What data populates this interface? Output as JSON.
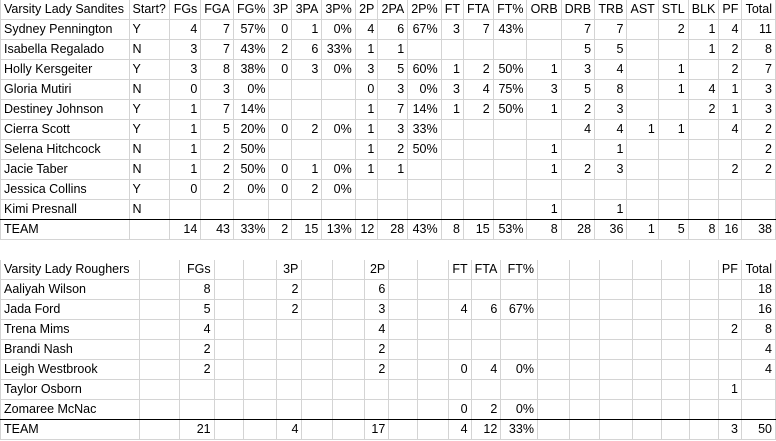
{
  "table1": {
    "header": [
      "Varsity Lady Sandites",
      "Start?",
      "FGs",
      "FGA",
      "FG%",
      "3P",
      "3PA",
      "3P%",
      "2P",
      "2PA",
      "2P%",
      "FT",
      "FTA",
      "FT%",
      "ORB",
      "DRB",
      "TRB",
      "AST",
      "STL",
      "BLK",
      "PF",
      "Total"
    ],
    "rows": [
      [
        "Sydney Pennington",
        "Y",
        "4",
        "7",
        "57%",
        "0",
        "1",
        "0%",
        "4",
        "6",
        "67%",
        "3",
        "7",
        "43%",
        "",
        "7",
        "7",
        "",
        "2",
        "1",
        "4",
        "11"
      ],
      [
        "Isabella Regalado",
        "N",
        "3",
        "7",
        "43%",
        "2",
        "6",
        "33%",
        "1",
        "1",
        "",
        "",
        "",
        "",
        "",
        "5",
        "5",
        "",
        "",
        "1",
        "2",
        "8"
      ],
      [
        "Holly Kersgeiter",
        "Y",
        "3",
        "8",
        "38%",
        "0",
        "3",
        "0%",
        "3",
        "5",
        "60%",
        "1",
        "2",
        "50%",
        "1",
        "3",
        "4",
        "",
        "1",
        "",
        "2",
        "7"
      ],
      [
        "Gloria Mutiri",
        "N",
        "0",
        "3",
        "0%",
        "",
        "",
        "",
        "0",
        "3",
        "0%",
        "3",
        "4",
        "75%",
        "3",
        "5",
        "8",
        "",
        "1",
        "4",
        "1",
        "3"
      ],
      [
        "Destiney Johnson",
        "Y",
        "1",
        "7",
        "14%",
        "",
        "",
        "",
        "1",
        "7",
        "14%",
        "1",
        "2",
        "50%",
        "1",
        "2",
        "3",
        "",
        "",
        "2",
        "1",
        "3"
      ],
      [
        "Cierra Scott",
        "Y",
        "1",
        "5",
        "20%",
        "0",
        "2",
        "0%",
        "1",
        "3",
        "33%",
        "",
        "",
        "",
        "",
        "4",
        "4",
        "1",
        "1",
        "",
        "4",
        "2"
      ],
      [
        "Selena Hitchcock",
        "N",
        "1",
        "2",
        "50%",
        "",
        "",
        "",
        "1",
        "2",
        "50%",
        "",
        "",
        "",
        "1",
        "",
        "1",
        "",
        "",
        "",
        "",
        "2"
      ],
      [
        "Jacie Taber",
        "N",
        "1",
        "2",
        "50%",
        "0",
        "1",
        "0%",
        "1",
        "1",
        "",
        "",
        "",
        "",
        "1",
        "2",
        "3",
        "",
        "",
        "",
        "2",
        "2"
      ],
      [
        "Jessica Collins",
        "Y",
        "0",
        "2",
        "0%",
        "0",
        "2",
        "0%",
        "",
        "",
        "",
        "",
        "",
        "",
        "",
        "",
        "",
        "",
        "",
        "",
        "",
        ""
      ],
      [
        "Kimi Presnall",
        "N",
        "",
        "",
        "",
        "",
        "",
        "",
        "",
        "",
        "",
        "",
        "",
        "",
        "1",
        "",
        "1",
        "",
        "",
        "",
        "",
        ""
      ]
    ],
    "team": [
      "TEAM",
      "",
      "14",
      "43",
      "33%",
      "2",
      "15",
      "13%",
      "12",
      "28",
      "43%",
      "8",
      "15",
      "53%",
      "8",
      "28",
      "36",
      "1",
      "5",
      "8",
      "16",
      "38"
    ]
  },
  "table2": {
    "header": [
      "Varsity Lady Roughers",
      "",
      "FGs",
      "",
      "",
      "3P",
      "",
      "",
      "2P",
      "",
      "",
      "FT",
      "FTA",
      "FT%",
      "",
      "",
      "",
      "",
      "",
      "",
      "PF",
      "Total"
    ],
    "rows": [
      [
        "Aaliyah Wilson",
        "",
        "8",
        "",
        "",
        "2",
        "",
        "",
        "6",
        "",
        "",
        "",
        "",
        "",
        "",
        "",
        "",
        "",
        "",
        "",
        "",
        "18"
      ],
      [
        "Jada Ford",
        "",
        "5",
        "",
        "",
        "2",
        "",
        "",
        "3",
        "",
        "",
        "4",
        "6",
        "67%",
        "",
        "",
        "",
        "",
        "",
        "",
        "",
        "16"
      ],
      [
        "Trena Mims",
        "",
        "4",
        "",
        "",
        "",
        "",
        "",
        "4",
        "",
        "",
        "",
        "",
        "",
        "",
        "",
        "",
        "",
        "",
        "",
        "2",
        "8"
      ],
      [
        "Brandi Nash",
        "",
        "2",
        "",
        "",
        "",
        "",
        "",
        "2",
        "",
        "",
        "",
        "",
        "",
        "",
        "",
        "",
        "",
        "",
        "",
        "",
        "4"
      ],
      [
        "Leigh Westbrook",
        "",
        "2",
        "",
        "",
        "",
        "",
        "",
        "2",
        "",
        "",
        "0",
        "4",
        "0%",
        "",
        "",
        "",
        "",
        "",
        "",
        "",
        "4"
      ],
      [
        "Taylor Osborn",
        "",
        "",
        "",
        "",
        "",
        "",
        "",
        "",
        "",
        "",
        "",
        "",
        "",
        "",
        "",
        "",
        "",
        "",
        "",
        "1",
        ""
      ],
      [
        "Zomaree McNac",
        "",
        "",
        "",
        "",
        "",
        "",
        "",
        "",
        "",
        "",
        "0",
        "2",
        "0%",
        "",
        "",
        "",
        "",
        "",
        "",
        "",
        ""
      ]
    ],
    "team": [
      "TEAM",
      "",
      "21",
      "",
      "",
      "4",
      "",
      "",
      "17",
      "",
      "",
      "4",
      "12",
      "33%",
      "",
      "",
      "",
      "",
      "",
      "",
      "3",
      "50"
    ]
  }
}
